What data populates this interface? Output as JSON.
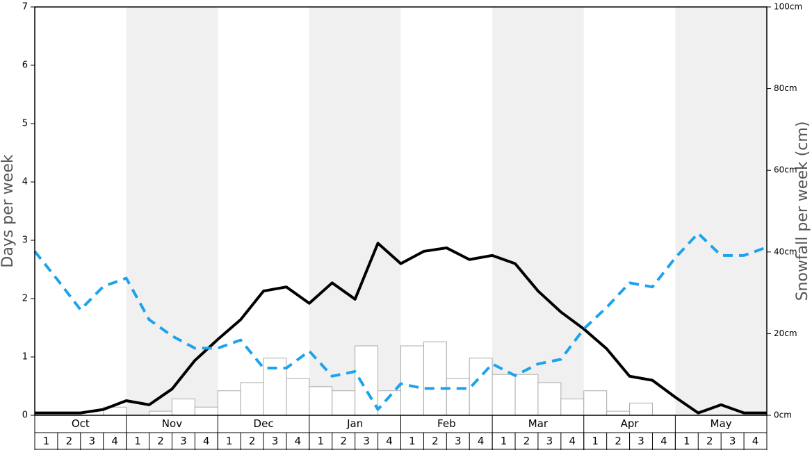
{
  "chart_data": {
    "type": "bar-line",
    "y_label": "Days per week",
    "y2_label": "Snowfall per week (cm)",
    "months": [
      "Oct",
      "Nov",
      "Dec",
      "Jan",
      "Feb",
      "Mar",
      "Apr",
      "May"
    ],
    "categories": [
      "1",
      "2",
      "3",
      "4",
      "1",
      "2",
      "3",
      "4",
      "1",
      "2",
      "3",
      "4",
      "1",
      "2",
      "3",
      "4",
      "1",
      "2",
      "3",
      "4",
      "1",
      "2",
      "3",
      "4",
      "1",
      "2",
      "3",
      "4",
      "1",
      "2",
      "3",
      "4"
    ],
    "ylim": [
      0,
      7
    ],
    "yticks": [
      0,
      1,
      2,
      3,
      4,
      5,
      6,
      7
    ],
    "y2lim": [
      0,
      100
    ],
    "y2ticks": [
      {
        "value": 0,
        "label": "0cm"
      },
      {
        "value": 20,
        "label": "20cm"
      },
      {
        "value": 40,
        "label": "40cm"
      },
      {
        "value": 60,
        "label": "60cm"
      },
      {
        "value": 80,
        "label": "80cm"
      },
      {
        "value": 100,
        "label": "100cm"
      }
    ],
    "bars": {
      "axis": "y2",
      "fill": "#ffffff",
      "stroke": "#aaaaaa",
      "values": [
        0,
        0,
        0,
        2,
        0,
        1,
        4,
        2,
        6,
        8,
        14,
        9,
        7,
        6,
        17,
        6,
        17,
        18,
        9,
        14,
        10,
        10,
        8,
        4,
        6,
        1,
        3,
        0,
        0,
        0,
        0,
        0
      ]
    },
    "xlim": [
      0,
      32
    ],
    "x": [
      0,
      1,
      2,
      3,
      4,
      5,
      6,
      7,
      8,
      9,
      10,
      11,
      12,
      13,
      14,
      15,
      16,
      17,
      18,
      19,
      20,
      21,
      22,
      23,
      24,
      25,
      26,
      27,
      28,
      29,
      30,
      31,
      32
    ],
    "series": [
      {
        "color": "#000000",
        "dashed": false,
        "values": [
          0.04,
          0.04,
          0.04,
          0.1,
          0.25,
          0.18,
          0.45,
          0.94,
          1.3,
          1.64,
          2.13,
          2.2,
          1.92,
          2.27,
          1.99,
          2.95,
          2.6,
          2.81,
          2.87,
          2.67,
          2.74,
          2.6,
          2.13,
          1.77,
          1.48,
          1.14,
          0.67,
          0.6,
          0.31,
          0.04,
          0.18,
          0.04,
          0.04
        ]
      },
      {
        "color": "#1ca3ec",
        "dashed": true,
        "values": [
          2.81,
          2.32,
          1.81,
          2.21,
          2.35,
          1.64,
          1.36,
          1.15,
          1.15,
          1.29,
          0.81,
          0.81,
          1.1,
          0.67,
          0.75,
          0.1,
          0.54,
          0.46,
          0.46,
          0.46,
          0.88,
          0.68,
          0.88,
          0.96,
          1.48,
          1.85,
          2.27,
          2.2,
          2.7,
          3.12,
          2.74,
          2.74,
          2.88
        ]
      }
    ]
  }
}
